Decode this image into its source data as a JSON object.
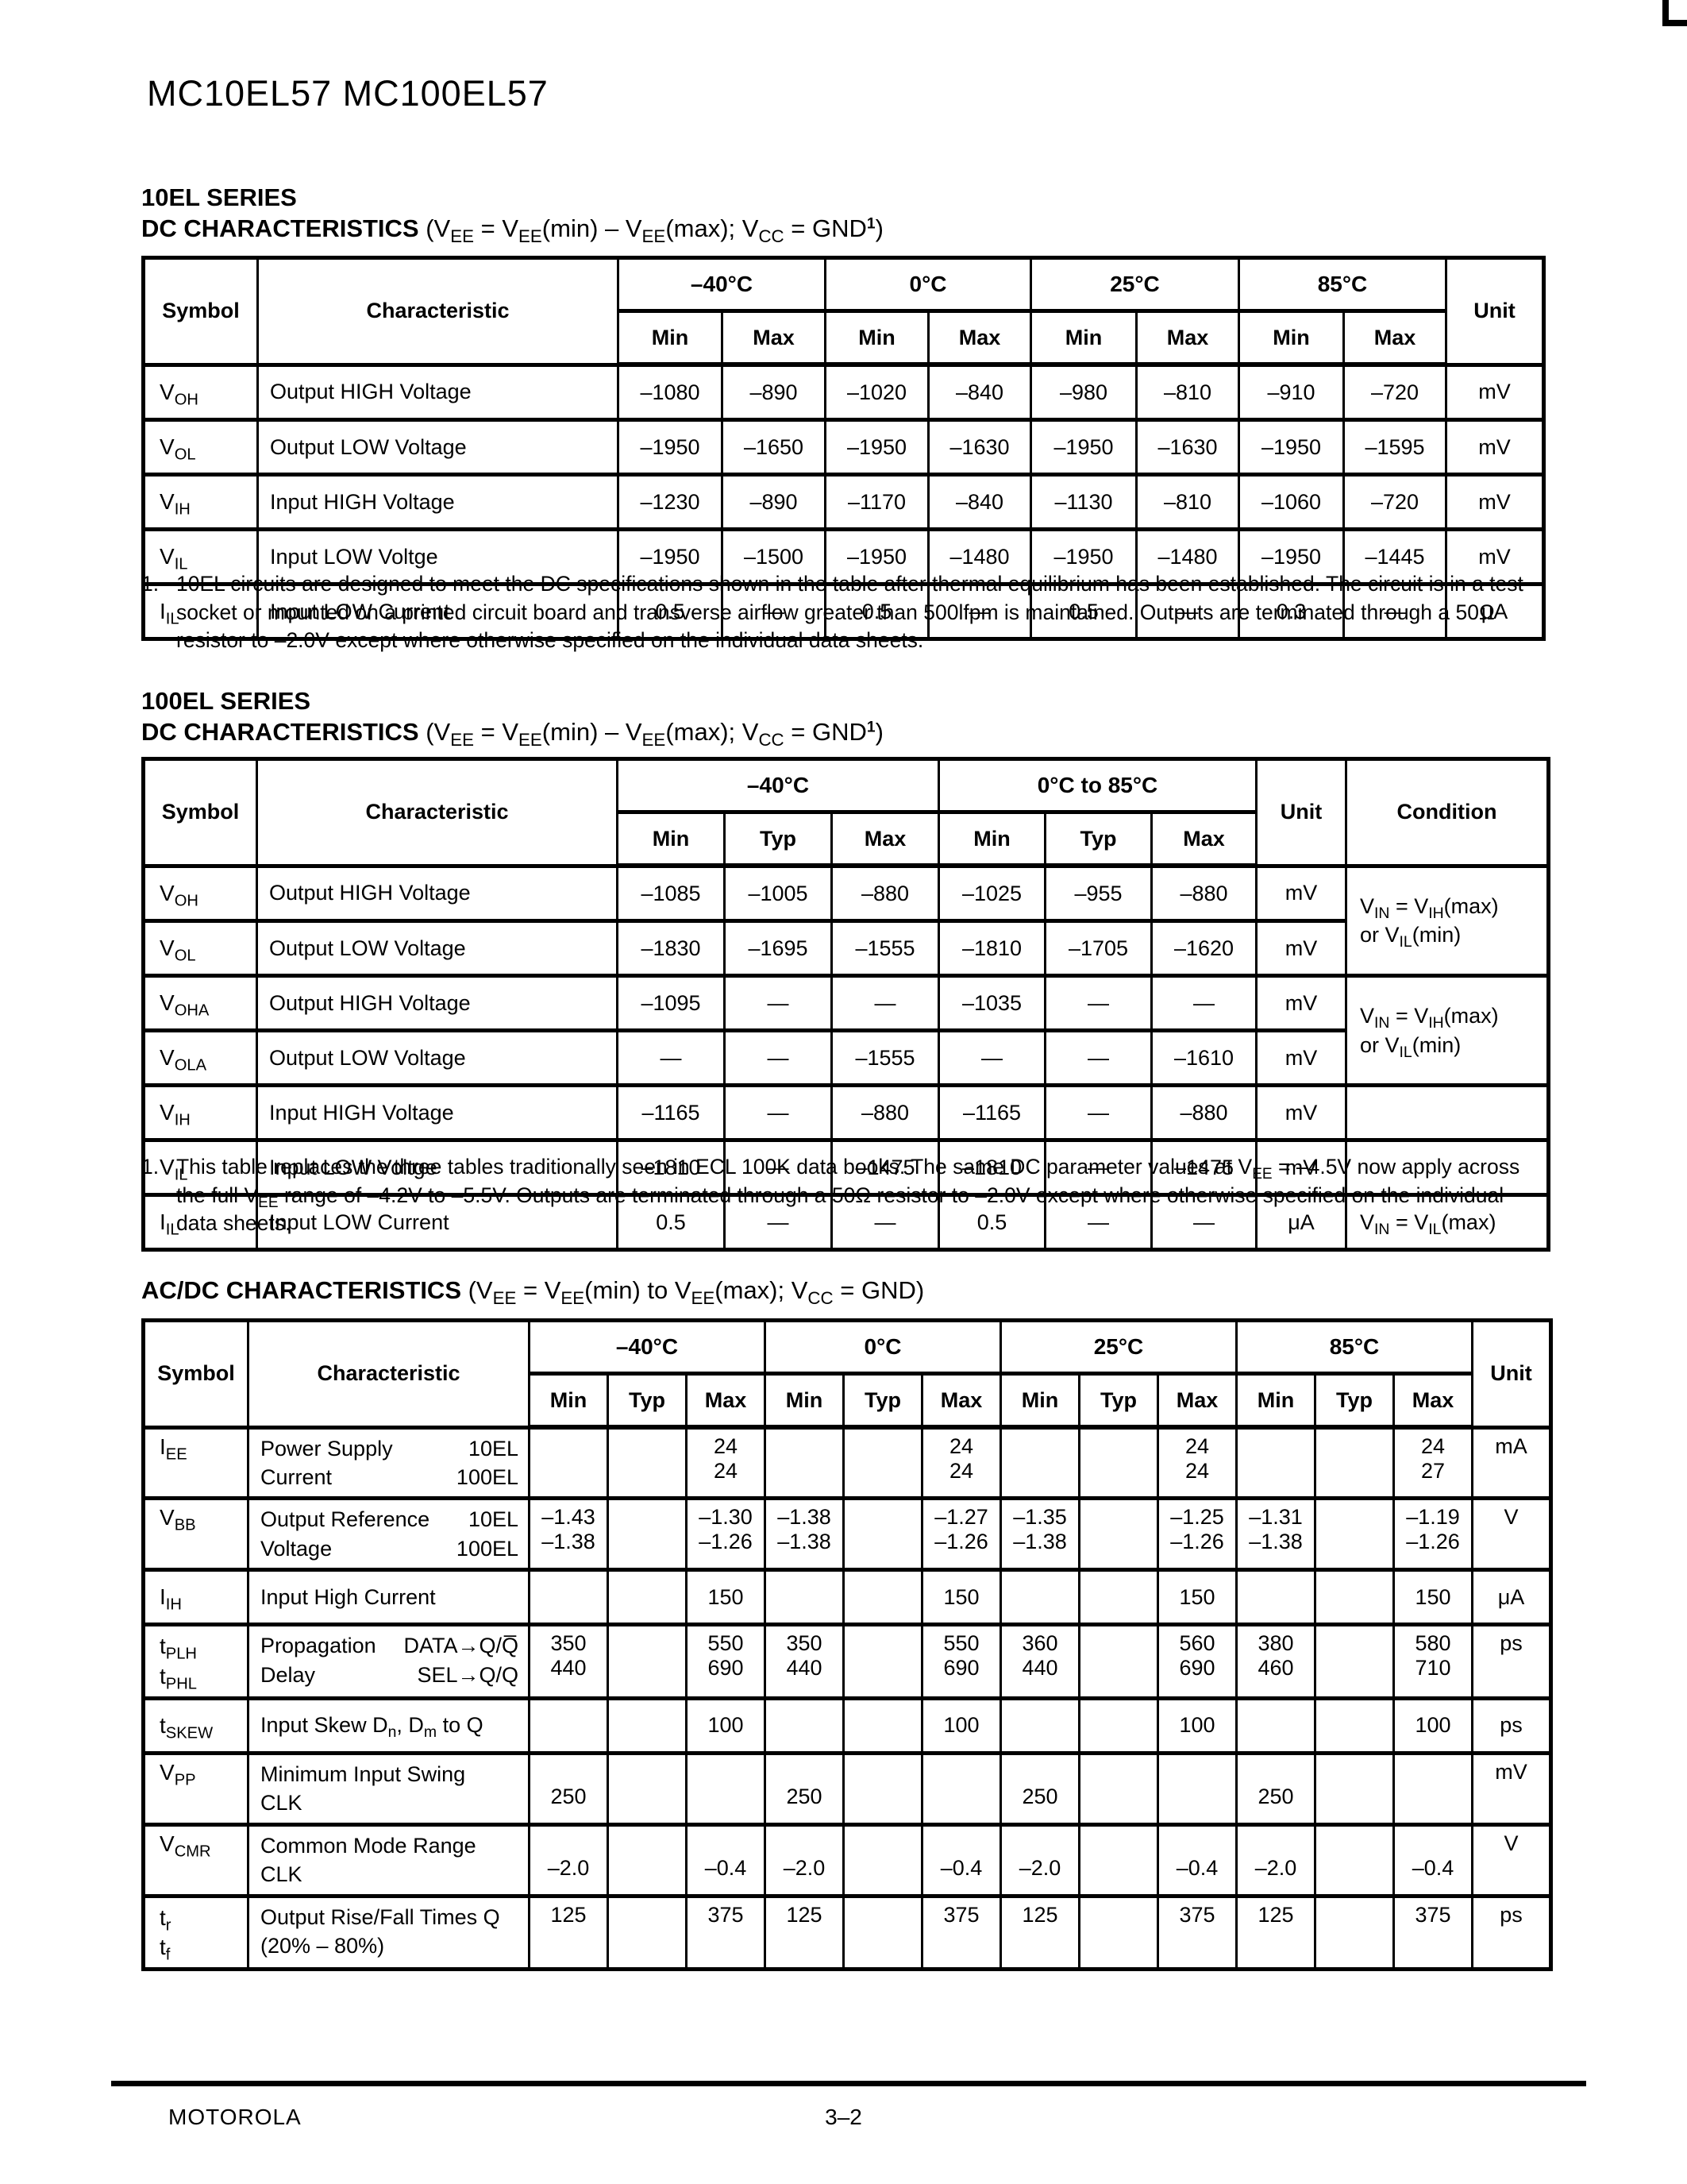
{
  "page": {
    "part_number": "MC10EL57 MC100EL57",
    "footer": {
      "left": "MOTOROLA",
      "page_number": "3–2"
    }
  },
  "tables": [
    {
      "section_title": "10EL SERIES",
      "heading_bold": "DC CHARACTERISTICS",
      "heading_formula": [
        " (V",
        [
          "EE",
          "sub"
        ],
        " = V",
        [
          "EE",
          "sub"
        ],
        "(min) – V",
        [
          "EE",
          "sub"
        ],
        "(max); V",
        [
          "CC",
          "sub"
        ],
        " = GND",
        [
          "1",
          "supb"
        ],
        ")"
      ],
      "corner_headers": [
        "Symbol",
        "Characteristic"
      ],
      "groups": [
        {
          "label": "–40°C",
          "cols": [
            "Min",
            "Max"
          ]
        },
        {
          "label": "0°C",
          "cols": [
            "Min",
            "Max"
          ]
        },
        {
          "label": "25°C",
          "cols": [
            "Min",
            "Max"
          ]
        },
        {
          "label": "85°C",
          "cols": [
            "Min",
            "Max"
          ]
        }
      ],
      "tail_headers": [
        "Unit"
      ],
      "rows": [
        {
          "symbol": [
            "V",
            [
              "OH",
              "sub"
            ]
          ],
          "characteristic": "Output HIGH Voltage",
          "values": [
            "–1080",
            "–890",
            "–1020",
            "–840",
            "–980",
            "–810",
            "–910",
            "–720"
          ],
          "unit": "mV"
        },
        {
          "symbol": [
            "V",
            [
              "OL",
              "sub"
            ]
          ],
          "characteristic": "Output LOW Voltage",
          "values": [
            "–1950",
            "–1650",
            "–1950",
            "–1630",
            "–1950",
            "–1630",
            "–1950",
            "–1595"
          ],
          "unit": "mV"
        },
        {
          "symbol": [
            "V",
            [
              "IH",
              "sub"
            ]
          ],
          "characteristic": "Input HIGH Voltage",
          "values": [
            "–1230",
            "–890",
            "–1170",
            "–840",
            "–1130",
            "–810",
            "–1060",
            "–720"
          ],
          "unit": "mV"
        },
        {
          "symbol": [
            "V",
            [
              "IL",
              "sub"
            ]
          ],
          "characteristic": "Input LOW Voltge",
          "values": [
            "–1950",
            "–1500",
            "–1950",
            "–1480",
            "–1950",
            "–1480",
            "–1950",
            "–1445"
          ],
          "unit": "mV"
        },
        {
          "symbol": [
            "I",
            [
              "IL",
              "sub"
            ]
          ],
          "characteristic": "Input LOW Current",
          "values": [
            "0.5",
            "—",
            "0.5",
            "—",
            "0.5",
            "—",
            "0.3",
            "—"
          ],
          "unit": "μA"
        }
      ],
      "footnote": {
        "num": "1.",
        "text": [
          "10EL circuits are designed to meet the DC specifications shown in the table after thermal equilibrium has been established. The circuit is in a test socket or mounted on a printed circuit board and transverse airflow greater than 500lfpm is maintained. Outputs are terminated through a 50Ω resistor to –2.0V except where otherwise specified on the individual data sheets."
        ]
      }
    },
    {
      "section_title": "100EL SERIES",
      "heading_bold": "DC CHARACTERISTICS",
      "heading_formula": [
        " (V",
        [
          "EE",
          "sub"
        ],
        " = V",
        [
          "EE",
          "sub"
        ],
        "(min) – V",
        [
          "EE",
          "sub"
        ],
        "(max); V",
        [
          "CC",
          "sub"
        ],
        " = GND",
        [
          "1",
          "supb"
        ],
        ")"
      ],
      "corner_headers": [
        "Symbol",
        "Characteristic"
      ],
      "groups": [
        {
          "label": "–40°C",
          "cols": [
            "Min",
            "Typ",
            "Max"
          ]
        },
        {
          "label": "0°C to 85°C",
          "cols": [
            "Min",
            "Typ",
            "Max"
          ]
        }
      ],
      "tail_headers": [
        "Unit",
        "Condition"
      ],
      "rows": [
        {
          "symbol": [
            "V",
            [
              "OH",
              "sub"
            ]
          ],
          "characteristic": "Output HIGH Voltage",
          "values": [
            "–1085",
            "–1005",
            "–880",
            "–1025",
            "–955",
            "–880"
          ],
          "unit": "mV",
          "condition": {
            "rowspan": 2,
            "lines": [
              [
                "V",
                [
                  "IN",
                  "sub"
                ],
                " = V",
                [
                  "IH",
                  "sub"
                ],
                "(max)"
              ],
              [
                "or V",
                [
                  "IL",
                  "sub"
                ],
                "(min)"
              ]
            ]
          }
        },
        {
          "symbol": [
            "V",
            [
              "OL",
              "sub"
            ]
          ],
          "characteristic": "Output LOW Voltage",
          "values": [
            "–1830",
            "–1695",
            "–1555",
            "–1810",
            "–1705",
            "–1620"
          ],
          "unit": "mV",
          "condition": null
        },
        {
          "symbol": [
            "V",
            [
              "OHA",
              "sub"
            ]
          ],
          "characteristic": "Output HIGH Voltage",
          "values": [
            "–1095",
            "—",
            "—",
            "–1035",
            "—",
            "—"
          ],
          "unit": "mV",
          "condition": {
            "rowspan": 2,
            "lines": [
              [
                "V",
                [
                  "IN",
                  "sub"
                ],
                " = V",
                [
                  "IH",
                  "sub"
                ],
                "(max)"
              ],
              [
                "or V",
                [
                  "IL",
                  "sub"
                ],
                "(min)"
              ]
            ]
          }
        },
        {
          "symbol": [
            "V",
            [
              "OLA",
              "sub"
            ]
          ],
          "characteristic": "Output LOW Voltage",
          "values": [
            "—",
            "—",
            "–1555",
            "—",
            "—",
            "–1610"
          ],
          "unit": "mV",
          "condition": null
        },
        {
          "symbol": [
            "V",
            [
              "IH",
              "sub"
            ]
          ],
          "characteristic": "Input HIGH Voltage",
          "values": [
            "–1165",
            "—",
            "–880",
            "–1165",
            "—",
            "–880"
          ],
          "unit": "mV",
          "condition": ""
        },
        {
          "symbol": [
            "V",
            [
              "IL",
              "sub"
            ]
          ],
          "characteristic": "Input LOW Voltge",
          "values": [
            "–1810",
            "—",
            "–1475",
            "–1810",
            "—",
            "–1475"
          ],
          "unit": "mV",
          "condition": ""
        },
        {
          "symbol": [
            "I",
            [
              "IL",
              "sub"
            ]
          ],
          "characteristic": "Input LOW Current",
          "values": [
            "0.5",
            "—",
            "—",
            "0.5",
            "—",
            "—"
          ],
          "unit": "μA",
          "condition": [
            "V",
            [
              "IN",
              "sub"
            ],
            " = V",
            [
              "IL",
              "sub"
            ],
            "(max)"
          ]
        }
      ],
      "footnote": {
        "num": "1.",
        "text": [
          "This table replaces the three tables traditionally seen in ECL 100K data books. The same DC parameter values at V",
          [
            "EE",
            "sub"
          ],
          " = –4.5V now apply across the full V",
          [
            "EE",
            "sub"
          ],
          " range of –4.2V to –5.5V. Outputs are terminated through a 50Ω resistor to –2.0V except where otherwise specified on the individual data sheets."
        ]
      }
    },
    {
      "section_title": "",
      "heading_bold": "AC/DC CHARACTERISTICS",
      "heading_formula": [
        " (V",
        [
          "EE",
          "sub"
        ],
        " = V",
        [
          "EE",
          "sub"
        ],
        "(min) to V",
        [
          "EE",
          "sub"
        ],
        "(max); V",
        [
          "CC",
          "sub"
        ],
        " =  GND)"
      ],
      "corner_headers": [
        "Symbol",
        "Characteristic"
      ],
      "groups": [
        {
          "label": "–40°C",
          "cols": [
            "Min",
            "Typ",
            "Max"
          ]
        },
        {
          "label": "0°C",
          "cols": [
            "Min",
            "Typ",
            "Max"
          ]
        },
        {
          "label": "25°C",
          "cols": [
            "Min",
            "Typ",
            "Max"
          ]
        },
        {
          "label": "85°C",
          "cols": [
            "Min",
            "Typ",
            "Max"
          ]
        }
      ],
      "tail_headers": [
        "Unit"
      ],
      "rows": [
        {
          "symbol": [
            "I",
            [
              "EE",
              "sub"
            ]
          ],
          "valign": "top",
          "characteristic": {
            "lines": [
              {
                "l": "Power Supply",
                "r": "10EL"
              },
              {
                "l": "Current",
                "r": "100EL"
              }
            ]
          },
          "values": [
            "",
            "",
            "24\n24",
            "",
            "",
            "24\n24",
            "",
            "",
            "24\n24",
            "",
            "",
            "24\n27"
          ],
          "unit": "mA"
        },
        {
          "symbol": [
            "V",
            [
              "BB",
              "sub"
            ]
          ],
          "valign": "top",
          "characteristic": {
            "lines": [
              {
                "l": "Output Reference",
                "r": "10EL"
              },
              {
                "l": "Voltage",
                "r": "100EL"
              }
            ]
          },
          "values": [
            "–1.43\n–1.38",
            "",
            "–1.30\n–1.26",
            "–1.38\n–1.38",
            "",
            "–1.27\n–1.26",
            "–1.35\n–1.38",
            "",
            "–1.25\n–1.26",
            "–1.31\n–1.38",
            "",
            "–1.19\n–1.26"
          ],
          "unit": "V"
        },
        {
          "symbol": [
            "I",
            [
              "IH",
              "sub"
            ]
          ],
          "characteristic": "Input High Current",
          "values": [
            "",
            "",
            "150",
            "",
            "",
            "150",
            "",
            "",
            "150",
            "",
            "",
            "150"
          ],
          "unit": "μA"
        },
        {
          "symbol": {
            "lines": [
              [
                "t",
                [
                  "PLH",
                  "sub"
                ]
              ],
              [
                "t",
                [
                  "PHL",
                  "sub"
                ]
              ]
            ]
          },
          "valign": "top",
          "characteristic": {
            "lines": [
              {
                "l": "Propagation",
                "r": "DATA→Q/Q̅"
              },
              {
                "l": "Delay",
                "r": "SEL→Q/Q"
              }
            ]
          },
          "values": [
            "350\n440",
            "",
            "550\n690",
            "350\n440",
            "",
            "550\n690",
            "360\n440",
            "",
            "560\n690",
            "380\n460",
            "",
            "580\n710"
          ],
          "unit": "ps"
        },
        {
          "symbol": [
            "t",
            [
              "SKEW",
              "sub"
            ]
          ],
          "characteristic": [
            "Input Skew  D",
            [
              "n",
              "sub"
            ],
            ", D",
            [
              "m",
              "sub"
            ],
            " to Q"
          ],
          "values": [
            "",
            "",
            "100",
            "",
            "",
            "100",
            "",
            "",
            "100",
            "",
            "",
            "100"
          ],
          "unit": "ps"
        },
        {
          "symbol": [
            "V",
            [
              "PP",
              "sub"
            ]
          ],
          "valign": "top",
          "characteristic": {
            "lines": [
              "Minimum Input Swing",
              "CLK"
            ]
          },
          "values": [
            "\n250",
            "",
            "",
            "\n250",
            "",
            "",
            "\n250",
            "",
            "",
            "\n250",
            "",
            ""
          ],
          "unit": "mV"
        },
        {
          "symbol": [
            "V",
            [
              "CMR",
              "sub"
            ]
          ],
          "valign": "top",
          "characteristic": {
            "lines": [
              "Common Mode Range",
              "CLK"
            ]
          },
          "values": [
            "\n–2.0",
            "",
            "\n–0.4",
            "\n–2.0",
            "",
            "\n–0.4",
            "\n–2.0",
            "",
            "\n–0.4",
            "\n–2.0",
            "",
            "\n–0.4"
          ],
          "unit": "V"
        },
        {
          "symbol": {
            "lines": [
              [
                "t",
                [
                  "r",
                  "sub"
                ]
              ],
              [
                "t",
                [
                  "f",
                  "sub"
                ]
              ]
            ]
          },
          "valign": "top",
          "characteristic": {
            "lines": [
              "Output Rise/Fall Times Q",
              "(20% – 80%)"
            ]
          },
          "values": [
            "125",
            "",
            "375",
            "125",
            "",
            "375",
            "125",
            "",
            "375",
            "125",
            "",
            "375"
          ],
          "unit": "ps"
        }
      ],
      "footnote": null
    }
  ]
}
